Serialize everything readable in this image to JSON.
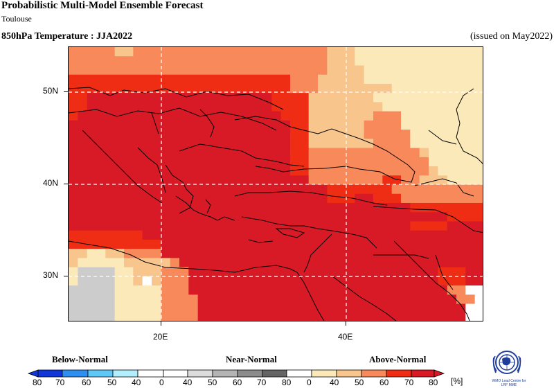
{
  "header": {
    "title": "Probabilistic Multi-Model Ensemble Forecast",
    "subtitle": "Toulouse",
    "field": "850hPa Temperature : JJA2022",
    "issued": "(issued on May2022)"
  },
  "map": {
    "lat_labels": [
      "50N",
      "40N",
      "30N"
    ],
    "lon_labels": [
      "20E",
      "40E"
    ],
    "lat_range": [
      25,
      56
    ],
    "lon_range": [
      10,
      55
    ],
    "gridlines": true,
    "region": "Eastern Mediterranean / Black Sea / Caspian Sea",
    "dominant_category": "Above-Normal",
    "land_color": "#cccccc",
    "palette_above": [
      "#fbe9b9",
      "#f8c58c",
      "#f7895b",
      "#ee2d14",
      "#d71a26"
    ],
    "palette_near": [
      "#dcdcdc",
      "#b4b4b4",
      "#8c8c8c",
      "#646464"
    ],
    "palette_below": [
      "#b2eefb",
      "#60c8f6",
      "#2f8ff0",
      "#1136d8"
    ]
  },
  "legend": {
    "categories": [
      "Below-Normal",
      "Near-Normal",
      "Above-Normal"
    ],
    "below": {
      "labels": [
        "80",
        "70",
        "60",
        "50",
        "40"
      ]
    },
    "near": {
      "labels": [
        "0",
        "40",
        "50",
        "60",
        "70",
        "80"
      ]
    },
    "above": {
      "labels": [
        "0",
        "40",
        "50",
        "60",
        "70",
        "80"
      ]
    },
    "unit": "[%]"
  },
  "logo": {
    "text_line1": "WMO Lead Centre for",
    "text_line2": "LRF MME"
  }
}
